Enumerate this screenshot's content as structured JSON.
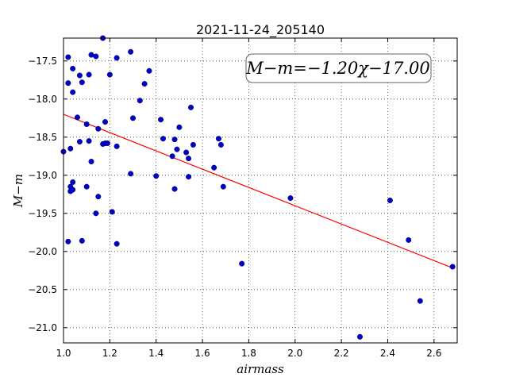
{
  "chart_data": {
    "type": "scatter",
    "title": "2021-11-24_205140",
    "xlabel": "airmass",
    "ylabel": "M−m",
    "xlim": [
      1.0,
      2.7
    ],
    "ylim": [
      -21.2,
      -17.2
    ],
    "x_ticks": [
      1.0,
      1.2,
      1.4,
      1.6,
      1.8,
      2.0,
      2.2,
      2.4,
      2.6
    ],
    "x_tick_labels": [
      "1.0",
      "1.2",
      "1.4",
      "1.6",
      "1.8",
      "2.0",
      "2.2",
      "2.4",
      "2.6"
    ],
    "y_ticks": [
      -17.5,
      -18.0,
      -18.5,
      -19.0,
      -19.5,
      -20.0,
      -20.5,
      -21.0
    ],
    "y_tick_labels": [
      "−17.5",
      "−18.0",
      "−18.5",
      "−19.0",
      "−19.5",
      "−20.0",
      "−20.5",
      "−21.0"
    ],
    "grid": true,
    "annotation": "M−m=−1.20χ−17.00",
    "fit": {
      "slope": -1.2,
      "intercept": -17.0,
      "color": "#ff0000"
    },
    "marker_color": "#0000cc",
    "series": [
      {
        "x": [
          1.02,
          1.02,
          1.04,
          1.04,
          1.07,
          1.08,
          1.11,
          1.12,
          1.14,
          1.2,
          1.23,
          1.29,
          1.37,
          1.35,
          1.06,
          1.1,
          1.15,
          1.18,
          1.3,
          1.33,
          1.42,
          1.55,
          1.0,
          1.03,
          1.07,
          1.11,
          1.12,
          1.17,
          1.18,
          1.19,
          1.23,
          1.43,
          1.48,
          1.5,
          1.53,
          1.56,
          1.67,
          1.68,
          1.47,
          1.49,
          1.54,
          1.65,
          1.03,
          1.04,
          1.04,
          1.1,
          1.03,
          1.15,
          1.14,
          1.21,
          1.02,
          1.08,
          1.23,
          1.29,
          1.4,
          1.48,
          1.54,
          1.69,
          1.77,
          1.98,
          2.28,
          2.41,
          2.49,
          2.54,
          2.68,
          1.17
        ],
        "y": [
          -17.45,
          -17.79,
          -17.6,
          -17.91,
          -17.69,
          -17.78,
          -17.68,
          -17.42,
          -17.44,
          -17.68,
          -17.46,
          -17.38,
          -17.63,
          -17.8,
          -18.24,
          -18.33,
          -18.39,
          -18.3,
          -18.25,
          -18.02,
          -18.27,
          -18.11,
          -18.69,
          -18.65,
          -18.56,
          -18.55,
          -18.82,
          -18.59,
          -18.58,
          -18.58,
          -18.62,
          -18.52,
          -18.53,
          -18.37,
          -18.7,
          -18.6,
          -18.52,
          -18.6,
          -18.75,
          -18.66,
          -18.78,
          -18.9,
          -19.15,
          -19.09,
          -19.19,
          -19.15,
          -19.21,
          -19.28,
          -19.5,
          -19.48,
          -19.87,
          -19.86,
          -19.9,
          -18.98,
          -19.01,
          -19.18,
          -19.02,
          -19.15,
          -20.16,
          -19.3,
          -21.12,
          -19.33,
          -19.85,
          -20.65,
          -20.2,
          -17.2
        ]
      }
    ]
  }
}
